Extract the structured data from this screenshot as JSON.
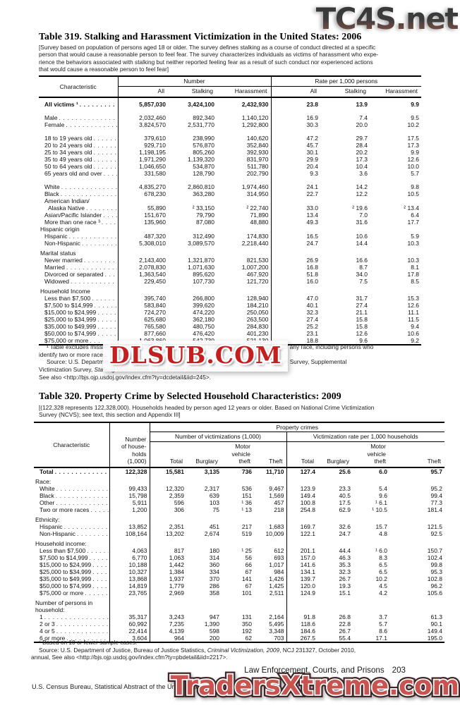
{
  "page": {
    "section_title": "Law Enforcement, Courts, and Prisons",
    "page_number": "203",
    "census_line": "U.S. Census Bureau, Statistical Abstract of the United States: 2012"
  },
  "watermarks": {
    "top": "TC4S.net",
    "middle": "DLSUB.COM",
    "bottom": "TradersXtreme.com",
    "top_color": "#3d3d3d",
    "middle_color": "#c41f1f",
    "bottom_color": "#c9534f"
  },
  "table319": {
    "title": "Table 319. Stalking and Harassment Victimization in the United States: 2006",
    "note_lines": [
      "[Survey based on population of persons aged 18 or older. The survey defines stalking as a course of conduct directed at a specific",
      "person that would cause a reasonable person to feel fear. The survey characterizes individuals as victims of harassment who expe-",
      "rience the behaviors associated with stalking but neither reported feeling fear as a result of such conduct nor experienced actions",
      "that would cause a reasonable person to feel fear]"
    ],
    "stub_header": "Characteristic",
    "group_headers": [
      "Number",
      "Rate per 1,000 persons"
    ],
    "col_headers": [
      "All",
      "Stalking",
      "Harassment",
      "All",
      "Stalking",
      "Harassment"
    ],
    "rows": [
      {
        "label": "All victims ¹",
        "i": 1,
        "b": 1,
        "d": 1,
        "sp": "sm",
        "v": [
          "5,857,030",
          "3,424,100",
          "2,432,930",
          "23.8",
          "13.9",
          "9.9"
        ]
      },
      {
        "label": "Male",
        "i": 1,
        "d": 1,
        "sp": "lg",
        "v": [
          "2,032,460",
          "892,340",
          "1,140,120",
          "16.9",
          "7.4",
          "9.5"
        ]
      },
      {
        "label": "Female",
        "i": 1,
        "d": 1,
        "v": [
          "3,824,570",
          "2,531,770",
          "1,292,800",
          "30.3",
          "20.0",
          "10.2"
        ]
      },
      {
        "label": "18 to 19 years old",
        "i": 1,
        "d": 1,
        "sp": "lg",
        "v": [
          "379,610",
          "238,990",
          "140,620",
          "47.2",
          "29.7",
          "17.5"
        ]
      },
      {
        "label": "20 to 24 years old",
        "i": 1,
        "d": 1,
        "v": [
          "929,710",
          "576,870",
          "352,840",
          "45.7",
          "28.4",
          "17.3"
        ]
      },
      {
        "label": "25 to 34 years old",
        "i": 1,
        "d": 1,
        "v": [
          "1,198,195",
          "805,260",
          "392,930",
          "30.1",
          "20.2",
          "9.9"
        ]
      },
      {
        "label": "35 to 49 years old",
        "i": 1,
        "d": 1,
        "v": [
          "1,971,290",
          "1,139,320",
          "831,970",
          "29.9",
          "17.3",
          "12.6"
        ]
      },
      {
        "label": "50 to 64 years old",
        "i": 1,
        "d": 1,
        "v": [
          "1,046,650",
          "534,870",
          "511,780",
          "20.4",
          "10.4",
          "10.0"
        ]
      },
      {
        "label": "65 years old and over",
        "i": 1,
        "d": 1,
        "v": [
          "331,580",
          "128,790",
          "202,790",
          "9.3",
          "3.6",
          "5.7"
        ]
      },
      {
        "label": "White",
        "i": 1,
        "d": 1,
        "sp": "lg",
        "v": [
          "4,835,270",
          "2,860,810",
          "1,974,460",
          "24.1",
          "14.2",
          "9.8"
        ]
      },
      {
        "label": "Black",
        "i": 1,
        "d": 1,
        "v": [
          "678,230",
          "363,280",
          "314,950",
          "22.7",
          "12.2",
          "10.5"
        ]
      },
      {
        "label": "American Indian/",
        "i": 1,
        "v": []
      },
      {
        "label": "Alaska Native",
        "i": 2,
        "d": 1,
        "v": [
          "55,890",
          "² 33,150",
          "² 22,740",
          "33.0",
          "² 19.6",
          "² 13.4"
        ]
      },
      {
        "label": "Asian/Pacific Islander",
        "i": 1,
        "d": 1,
        "v": [
          "151,670",
          "79,790",
          "71,890",
          "13.4",
          "7.0",
          "6.4"
        ]
      },
      {
        "label": "More than one race ³",
        "i": 1,
        "d": 1,
        "v": [
          "135,960",
          "87,080",
          "48,880",
          "49.3",
          "31.6",
          "17.7"
        ]
      },
      {
        "label": "Hispanic origin",
        "i": 0,
        "v": []
      },
      {
        "label": "Hispanic",
        "i": 1,
        "d": 1,
        "v": [
          "487,320",
          "312,490",
          "174,830",
          "16.5",
          "10.6",
          "5.9"
        ]
      },
      {
        "label": "Non-Hispanic",
        "i": 1,
        "d": 1,
        "v": [
          "5,308,010",
          "3,089,570",
          "2,218,440",
          "24.7",
          "14.4",
          "10.3"
        ]
      },
      {
        "label": "Marital status",
        "i": 0,
        "sp": "sm",
        "v": []
      },
      {
        "label": "Never married",
        "i": 1,
        "d": 1,
        "v": [
          "2,143,400",
          "1,321,870",
          "821,530",
          "26.9",
          "16.6",
          "10.3"
        ]
      },
      {
        "label": "Married",
        "i": 1,
        "d": 1,
        "v": [
          "2,078,830",
          "1,071,630",
          "1,007,200",
          "16.8",
          "8.7",
          "8.1"
        ]
      },
      {
        "label": "Divorced or separated",
        "i": 1,
        "d": 1,
        "v": [
          "1,363,540",
          "895,620",
          "467,920",
          "51.8",
          "34.0",
          "17.8"
        ]
      },
      {
        "label": "Widowed",
        "i": 1,
        "d": 1,
        "v": [
          "229,450",
          "107,730",
          "121,720",
          "16.0",
          "7.5",
          "8.5"
        ]
      },
      {
        "label": "Household Income",
        "i": 0,
        "sp": "sm",
        "v": []
      },
      {
        "label": "Less than $7,500",
        "i": 1,
        "d": 1,
        "v": [
          "395,740",
          "266,800",
          "128,940",
          "47.0",
          "31.7",
          "15.3"
        ]
      },
      {
        "label": "$7,500 to $14,999",
        "i": 1,
        "d": 1,
        "v": [
          "583,840",
          "399,620",
          "184,210",
          "40.1",
          "27.4",
          "12.6"
        ]
      },
      {
        "label": "$15,000 to $24,999",
        "i": 1,
        "d": 1,
        "v": [
          "724,270",
          "474,220",
          "250,050",
          "32.3",
          "21.1",
          "11.1"
        ]
      },
      {
        "label": "$25,000 to $34,999",
        "i": 1,
        "d": 1,
        "v": [
          "625,680",
          "362,180",
          "263,500",
          "27.4",
          "15.8",
          "11.5"
        ]
      },
      {
        "label": "$35,000 to $49,999",
        "i": 1,
        "d": 1,
        "v": [
          "765,580",
          "480,750",
          "284,830",
          "25.2",
          "15.8",
          "9.4"
        ]
      },
      {
        "label": "$50,000 to $74,999",
        "i": 1,
        "d": 1,
        "v": [
          "877,660",
          "476,420",
          "401,230",
          "23.1",
          "12.6",
          "10.6"
        ]
      },
      {
        "label": "$75,000 or more",
        "i": 1,
        "d": 1,
        "v": [
          "1,063,860",
          "542,730",
          "521,130",
          "18.8",
          "9.6",
          "9.2"
        ]
      }
    ],
    "foot_lines": [
      {
        "ind": 1,
        "segs": [
          {
            "t": "¹ Table excludes missing data. ² Based on 10 or fewer sample cases. ³ Includes all persons of any race, including persons who"
          }
        ]
      },
      {
        "segs": [
          {
            "t": "identify two or more races."
          }
        ]
      },
      {
        "ind": 1,
        "segs": [
          {
            "t": "Source: U.S. Department of Justice, Bureau of Justice Statistics, National Crime Victimization Survey, Supplemental"
          }
        ]
      },
      {
        "segs": [
          {
            "t": "Victimization Survey, "
          },
          {
            "t": "Stalking Victimization in the United States",
            "it": 1
          },
          {
            "t": "."
          }
        ]
      },
      {
        "segs": [
          {
            "t": "See also <http://bjs.ojp.usdoj.gov/index.cfm?ty=dcdetail&iid=245>."
          }
        ]
      }
    ]
  },
  "table320": {
    "title": "Table 320. Property Crime by Selected Household Characteristics: 2009",
    "note_lines": [
      "[(122,328 represents 122,328,000). Households headed by person aged 12 years or older. Based on National Crime Victimization",
      "Survey (NCVS); see text, this section and Appendix III]"
    ],
    "stub_header": "Characteristic",
    "households_header": "Number\nof house-\nholds\n(1,000)",
    "prop_header": "Property crimes",
    "group_headers": [
      "Number of victimizations (1,000)",
      "Victimization rate per 1,000 households"
    ],
    "col_headers": [
      "Total",
      "Burglary",
      "Motor\nvehicle\ntheft",
      "Theft",
      "Total",
      "Burglary",
      "Motor\nvehicle\ntheft",
      "Theft"
    ],
    "rows": [
      {
        "label": "Total",
        "i": 1,
        "b": 1,
        "d": 1,
        "v": [
          "122,328",
          "15,581",
          "3,135",
          "736",
          "11,710",
          "127.4",
          "25.6",
          "6.0",
          "95.7"
        ]
      },
      {
        "label": "Race:",
        "i": 0,
        "sp": "sm",
        "v": []
      },
      {
        "label": "White",
        "i": 1,
        "d": 1,
        "v": [
          "99,433",
          "12,320",
          "2,317",
          "536",
          "9,467",
          "123.9",
          "23.3",
          "5.4",
          "95.2"
        ]
      },
      {
        "label": "Black",
        "i": 1,
        "d": 1,
        "v": [
          "15,798",
          "2,359",
          "639",
          "151",
          "1,569",
          "149.4",
          "40.5",
          "9.6",
          "99.4"
        ]
      },
      {
        "label": "Other",
        "i": 1,
        "d": 1,
        "v": [
          "5,911",
          "596",
          "103",
          "¹ 36",
          "457",
          "100.8",
          "17.5",
          "¹ 6.1",
          "77.3"
        ]
      },
      {
        "label": "Two or more races",
        "i": 1,
        "d": 1,
        "v": [
          "1,200",
          "306",
          "75",
          "¹ 13",
          "218",
          "254.8",
          "62.9",
          "¹ 10.5",
          "181.4"
        ]
      },
      {
        "label": "Ethnicity:",
        "i": 0,
        "sp": "sm",
        "v": []
      },
      {
        "label": "Hispanic",
        "i": 1,
        "d": 1,
        "v": [
          "13,852",
          "2,351",
          "451",
          "217",
          "1,683",
          "169.7",
          "32.6",
          "15.7",
          "121.5"
        ]
      },
      {
        "label": "Non-Hispanic",
        "i": 1,
        "d": 1,
        "v": [
          "108,164",
          "13,202",
          "2,674",
          "519",
          "10,009",
          "122.1",
          "24.7",
          "4.8",
          "92.5"
        ]
      },
      {
        "label": "Household income:",
        "i": 0,
        "sp": "sm",
        "v": []
      },
      {
        "label": "Less than $7,500",
        "i": 1,
        "d": 1,
        "v": [
          "4,063",
          "817",
          "180",
          "¹ 25",
          "612",
          "201.1",
          "44.4",
          "¹ 6.0",
          "150.7"
        ]
      },
      {
        "label": "$7,500 to $14,999",
        "i": 1,
        "d": 1,
        "v": [
          "6,770",
          "1,063",
          "314",
          "56",
          "693",
          "157.0",
          "46.3",
          "8.3",
          "102.4"
        ]
      },
      {
        "label": "$15,000 to $24,999",
        "i": 1,
        "d": 1,
        "v": [
          "10,188",
          "1,442",
          "360",
          "66",
          "1,017",
          "141.6",
          "35.3",
          "6.5",
          "99.8"
        ]
      },
      {
        "label": "$25,000 to $34,999",
        "i": 1,
        "d": 1,
        "v": [
          "10,327",
          "1,384",
          "334",
          "67",
          "984",
          "134.1",
          "32.3",
          "6.5",
          "95.3"
        ]
      },
      {
        "label": "$35,000 to $49,999",
        "i": 1,
        "d": 1,
        "v": [
          "13,868",
          "1,937",
          "370",
          "141",
          "1,426",
          "139.7",
          "26.7",
          "10.2",
          "102.8"
        ]
      },
      {
        "label": "$50,000 to $74,999",
        "i": 1,
        "d": 1,
        "v": [
          "14,819",
          "1,779",
          "286",
          "67",
          "1,425",
          "120.0",
          "19.3",
          "4.5",
          "96.2"
        ]
      },
      {
        "label": "$75,000 or more",
        "i": 1,
        "d": 1,
        "v": [
          "23,765",
          "2,969",
          "358",
          "101",
          "2,511",
          "124.9",
          "15.1",
          "4.2",
          "105.6"
        ]
      },
      {
        "label": "Number of persons in household:",
        "i": 0,
        "sp": "sm",
        "wrap": 1,
        "v": []
      },
      {
        "label": "1",
        "i": 1,
        "d": 1,
        "v": [
          "35,317",
          "3,243",
          "947",
          "131",
          "2,164",
          "91.8",
          "26.8",
          "3.7",
          "61.3"
        ]
      },
      {
        "label": "2 or 3",
        "i": 1,
        "d": 1,
        "v": [
          "60,992",
          "7,235",
          "1,390",
          "350",
          "5,495",
          "118.6",
          "22.8",
          "5.7",
          "90.1"
        ]
      },
      {
        "label": "4 or 5",
        "i": 1,
        "d": 1,
        "v": [
          "22,414",
          "4,139",
          "598",
          "192",
          "3,348",
          "184.6",
          "26.7",
          "8.6",
          "149.4"
        ]
      },
      {
        "label": "6 or more",
        "i": 1,
        "d": 1,
        "v": [
          "3,604",
          "964",
          "200",
          "62",
          "703",
          "267.5",
          "55.4",
          "17.1",
          "195.0"
        ]
      }
    ],
    "foot_lines": [
      {
        "ind": 1,
        "segs": [
          {
            "t": "¹ Based on 10 or fewer sample cases."
          }
        ]
      },
      {
        "ind": 1,
        "segs": [
          {
            "t": "Source: U.S. Department of Justice, Bureau of Justice Statistics, "
          },
          {
            "t": "Criminal Victimization, 2009",
            "it": 1
          },
          {
            "t": ", NCJ 231327, October 2010,"
          }
        ]
      },
      {
        "segs": [
          {
            "t": "annual, See also <http://bjs.ojp.usdoj.gov/index.cfm?ty=pbdetail&iid=2217>."
          }
        ]
      }
    ]
  }
}
